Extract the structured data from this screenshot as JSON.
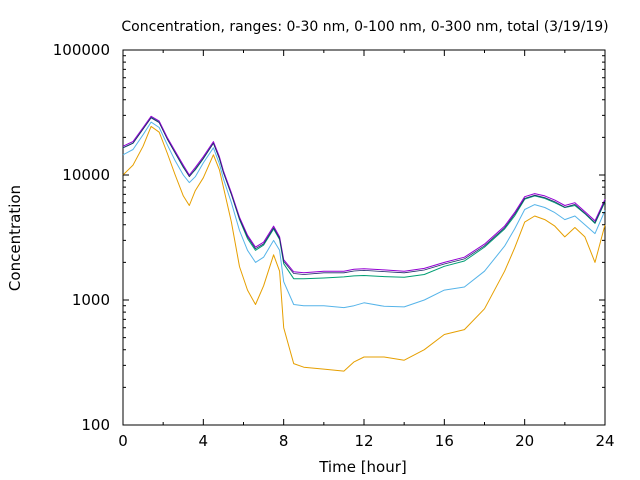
{
  "chart_data": {
    "type": "line",
    "title": "Concentration, ranges: 0-30 nm, 0-100 nm, 0-300 nm, total (3/19/19)",
    "xlabel": "Time [hour]",
    "ylabel": "Concentration",
    "xlim": [
      0,
      24
    ],
    "ylim": [
      100,
      100000
    ],
    "yscale": "log",
    "grid": false,
    "legend": "none",
    "x_ticks": [
      0,
      4,
      8,
      12,
      16,
      20,
      24
    ],
    "x_tick_labels": [
      "0",
      "4",
      "8",
      "12",
      "16",
      "20",
      "24"
    ],
    "y_ticks": [
      100,
      1000,
      10000,
      100000
    ],
    "y_tick_labels": [
      "100",
      "1000",
      "10000",
      "100000"
    ],
    "x": [
      0,
      0.5,
      1,
      1.4,
      1.8,
      2.2,
      2.6,
      3,
      3.3,
      3.6,
      4,
      4.5,
      4.8,
      5,
      5.4,
      5.8,
      6.2,
      6.6,
      7,
      7.5,
      7.8,
      8,
      8.5,
      9,
      10,
      11,
      11.5,
      12,
      13,
      14,
      15,
      16,
      17,
      18,
      19,
      19.5,
      20,
      20.5,
      21,
      21.5,
      22,
      22.5,
      23,
      23.5,
      24
    ],
    "series": [
      {
        "color": "#9400d3",
        "values": [
          17000,
          18500,
          24000,
          29500,
          27000,
          20000,
          15500,
          12000,
          10000,
          11500,
          14000,
          18500,
          14000,
          10800,
          7200,
          4600,
          3300,
          2650,
          2900,
          3900,
          3200,
          2100,
          1680,
          1650,
          1700,
          1700,
          1760,
          1780,
          1740,
          1700,
          1790,
          2000,
          2200,
          2800,
          3900,
          5000,
          6700,
          7100,
          6800,
          6300,
          5700,
          6000,
          5100,
          4300,
          6400
        ]
      },
      {
        "color": "#009e73",
        "values": [
          16500,
          18000,
          23500,
          29000,
          26500,
          19500,
          15000,
          11500,
          9800,
          11000,
          13500,
          18000,
          13500,
          10500,
          7000,
          4400,
          3100,
          2500,
          2750,
          3700,
          3050,
          1950,
          1480,
          1480,
          1500,
          1530,
          1560,
          1570,
          1540,
          1520,
          1600,
          1860,
          2050,
          2650,
          3700,
          4700,
          6400,
          6800,
          6500,
          6000,
          5500,
          5700,
          4900,
          4100,
          6100
        ]
      },
      {
        "color": "#56b4e9",
        "values": [
          14500,
          16000,
          21000,
          26500,
          24000,
          17500,
          13000,
          10000,
          8700,
          9700,
          12500,
          16500,
          12300,
          9300,
          6000,
          3600,
          2500,
          2000,
          2200,
          3000,
          2500,
          1400,
          920,
          900,
          900,
          870,
          900,
          950,
          890,
          880,
          1000,
          1200,
          1270,
          1700,
          2700,
          3700,
          5300,
          5800,
          5500,
          5000,
          4400,
          4700,
          4000,
          3400,
          5200
        ]
      },
      {
        "color": "#e69f00",
        "values": [
          10000,
          12000,
          17000,
          24500,
          22000,
          15000,
          10000,
          6800,
          5700,
          7500,
          9500,
          14500,
          11000,
          8000,
          4200,
          1850,
          1200,
          920,
          1300,
          2300,
          1700,
          600,
          310,
          290,
          280,
          270,
          320,
          350,
          350,
          330,
          400,
          530,
          580,
          850,
          1700,
          2600,
          4200,
          4700,
          4400,
          3900,
          3200,
          3800,
          3200,
          2000,
          4000
        ]
      }
    ]
  }
}
